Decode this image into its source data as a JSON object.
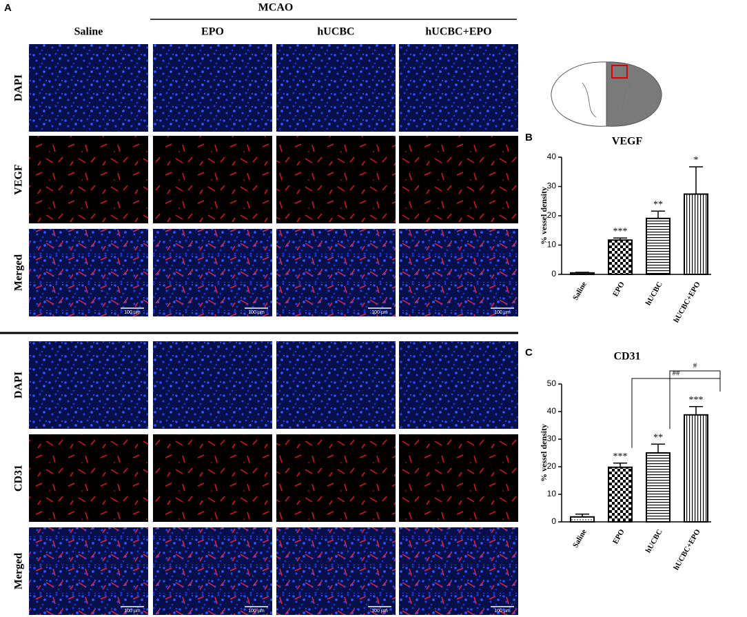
{
  "figure_a": {
    "label": "A",
    "group": "MCAO",
    "columns": [
      "Saline",
      "EPO",
      "hUCBC",
      "hUCBC+EPO"
    ],
    "rows_top": [
      "DAPI",
      "VEGF",
      "Merged"
    ],
    "rows_bottom": [
      "DAPI",
      "CD31",
      "Merged"
    ],
    "scale_bar": "100 µm"
  },
  "chart_data": [
    {
      "type": "bar",
      "panel": "B",
      "title": "VEGF",
      "y_label": "% vessel density",
      "categories": [
        "Saline",
        "EPO",
        "hUCBC",
        "hUCBC+EPO"
      ],
      "values": [
        0.5,
        11.7,
        19.1,
        27.4
      ],
      "errors": [
        0.2,
        0.7,
        2.5,
        9.3
      ],
      "significance": [
        null,
        "***",
        "**",
        "*"
      ],
      "patterns": [
        "dots",
        "checker",
        "hlines",
        "vlines"
      ],
      "ylim": [
        0,
        40
      ],
      "yticks": [
        0,
        10,
        20,
        30,
        40
      ]
    },
    {
      "type": "bar",
      "panel": "C",
      "title": "CD31",
      "y_label": "% vessel density",
      "categories": [
        "Saline",
        "EPO",
        "hUCBC",
        "hUCBC+EPO"
      ],
      "values": [
        1.8,
        19.8,
        25.0,
        38.8
      ],
      "errors": [
        1.0,
        1.5,
        3.2,
        3.0
      ],
      "significance": [
        null,
        "***",
        "**",
        "***"
      ],
      "patterns": [
        "dots",
        "checker",
        "hlines",
        "vlines"
      ],
      "comparisons": [
        {
          "from": 1,
          "to": 3,
          "label": "##"
        },
        {
          "from": 2,
          "to": 3,
          "label": "#"
        }
      ],
      "ylim": [
        0,
        50
      ],
      "yticks": [
        0,
        10,
        20,
        30,
        40,
        50
      ]
    }
  ]
}
